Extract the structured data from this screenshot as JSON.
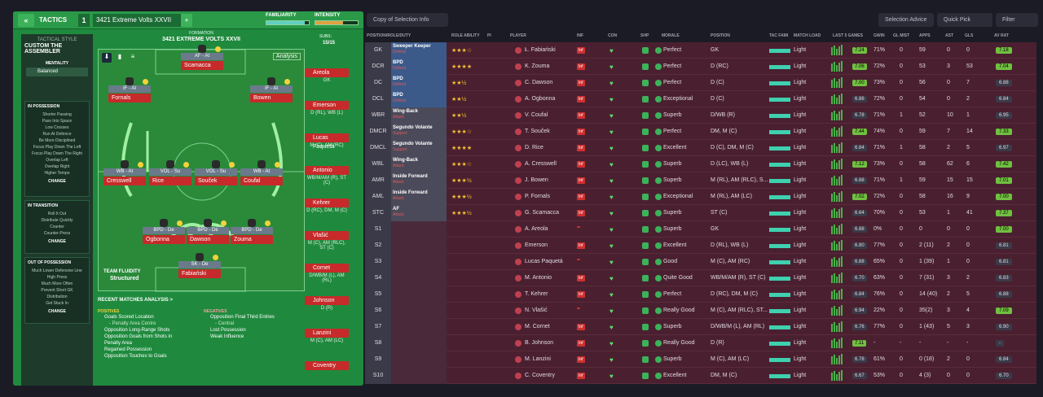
{
  "tactics": {
    "collapse": "«",
    "label": "TACTICS",
    "slot": "1",
    "name": "3421 Extreme Volts XXVII",
    "add": "+",
    "familiarity": "FAMILIARITY",
    "familiarity_level": 0.9,
    "intensity": "INTENSITY",
    "intensity_level": 0.65
  },
  "style": {
    "title": "TACTICAL STYLE",
    "name": "CUSTOM THE ASSEMBLER",
    "mentality_label": "MENTALITY",
    "mentality": "Balanced",
    "in_possession": {
      "title": "IN POSSESSION",
      "items": [
        "Shorter Passing",
        "Pass Into Space",
        "Low Crosses",
        "Run At Defence",
        "Be More Disciplined",
        "Focus Play Down The Left",
        "Focus Play Down The Right",
        "Overlap Left",
        "Overlap Right",
        "Higher Tempo"
      ],
      "change": "CHANGE"
    },
    "in_transition": {
      "title": "IN TRANSITION",
      "items": [
        "Roll It Out",
        "Distribute Quickly",
        "Counter",
        "Counter-Press"
      ],
      "change": "CHANGE"
    },
    "out_possession": {
      "title": "OUT OF POSSESSION",
      "items": [
        "Much Lower Defensive Line",
        "High Press",
        "Much More Often",
        "Prevent Short GK",
        "Distribution",
        "Get Stuck In"
      ],
      "change": "CHANGE"
    }
  },
  "formation": {
    "label": "FORMATION",
    "name": "3421 EXTREME VOLTS XXVII",
    "subs_label": "SUBS:",
    "subs": "15/15",
    "analysis": "Analysis",
    "fluidity_label": "TEAM FLUIDITY",
    "fluidity": "Structured",
    "players": [
      {
        "role": "AF - At",
        "name": "Scamacca"
      },
      {
        "role": "IF - At",
        "name": "Fornals"
      },
      {
        "role": "IF - At",
        "name": "Bowen"
      },
      {
        "role": "WB - At",
        "name": "Cresswell"
      },
      {
        "role": "VOL - Su",
        "name": "Rice"
      },
      {
        "role": "VOL - Su",
        "name": "Souček"
      },
      {
        "role": "WB - At",
        "name": "Coufal"
      },
      {
        "role": "BPD - De",
        "name": "Ogbonna"
      },
      {
        "role": "BPD - De",
        "name": "Dawson"
      },
      {
        "role": "BPD - De",
        "name": "Zouma"
      },
      {
        "role": "SK - De",
        "name": "Fabiański"
      }
    ]
  },
  "subs": [
    {
      "name": "Areola",
      "pos": "GK"
    },
    {
      "name": "Emerson",
      "pos": "D (RL), WB (L)"
    },
    {
      "name": "Lucas Paquetá",
      "pos": "M (C), AM (RC)"
    },
    {
      "name": "Antonio",
      "pos": "WB/M/AM (R), ST (C)"
    },
    {
      "name": "Kehrer",
      "pos": "D (RC), DM, M (C)"
    },
    {
      "name": "Vlašić",
      "pos": "M (C), AM (RLC), ST (C)"
    },
    {
      "name": "Cornet",
      "pos": "D/WB/M (L), AM (RL)"
    },
    {
      "name": "Johnson",
      "pos": "D (R)"
    },
    {
      "name": "Lanzini",
      "pos": "M (C), AM (LC)"
    },
    {
      "name": "Coventry",
      "pos": ""
    }
  ],
  "recent": {
    "title": "RECENT MATCHES ANALYSIS",
    "chev": ">",
    "pos_title": "POSITIVES",
    "neg_title": "NEGATIVES",
    "positives": [
      "Goals Scored Location",
      "- Penalty Area Centre",
      "Opposition Long-Range Shots",
      "Opposition Goals from Shots in",
      "Penalty Area",
      "Regained Possession",
      "Opposition Touches to Goals"
    ],
    "negatives": [
      "Opposition Final Third Entries",
      "- Central",
      "Lost Possession",
      "Weak Influence"
    ]
  },
  "toolbar": {
    "copy": "Copy of Selection Info",
    "advice": "Selection Advice",
    "quick_pick": "Quick Pick",
    "filter": "Filter"
  },
  "headers": [
    "POSITION/ROLE/DUTY",
    "ROLE ABILITY",
    "PI",
    "PLAYER",
    "INF",
    "CON",
    "SHP",
    "MORALE",
    "POSITION",
    "TAC FAMI",
    "MATCH LOAD",
    "LAST 5 GAMES",
    "GWIN",
    "GL MIST",
    "APPS",
    "AST",
    "GLS",
    "AV RAT"
  ],
  "rows": [
    {
      "pos": "GK",
      "role": "Sweeper Keeper",
      "duty": "Defend",
      "stars": "★★★☆",
      "player": "Ł. Fabiański",
      "inf": "Inf",
      "morale": "Perfect",
      "position": "GK",
      "load": "Light",
      "rat": "7.24",
      "gwin": "71%",
      "glm": "0",
      "apps": "59",
      "ast": "0",
      "gls": "0",
      "av": "7.18"
    },
    {
      "pos": "DCR",
      "role": "BPD",
      "duty": "Defend",
      "stars": "★★★★",
      "player": "K. Zouma",
      "inf": "Inf",
      "morale": "Perfect",
      "position": "D (RC)",
      "load": "Light",
      "rat": "7.06",
      "gwin": "72%",
      "glm": "0",
      "apps": "53",
      "ast": "3",
      "gls": "53",
      "av": "7.04"
    },
    {
      "pos": "DC",
      "role": "BPD",
      "duty": "Defend",
      "stars": "★★½",
      "player": "C. Dawson",
      "inf": "Inf",
      "morale": "Perfect",
      "position": "D (C)",
      "load": "Light",
      "rat": "7.00",
      "gwin": "73%",
      "glm": "0",
      "apps": "56",
      "ast": "0",
      "gls": "7",
      "av": "6.88"
    },
    {
      "pos": "DCL",
      "role": "BPD",
      "duty": "Defend",
      "stars": "★★½",
      "player": "A. Ogbonna",
      "inf": "Inf",
      "morale": "Exceptional",
      "position": "D (C)",
      "load": "Light",
      "rat": "6.86",
      "gwin": "72%",
      "glm": "0",
      "apps": "54",
      "ast": "0",
      "gls": "2",
      "av": "6.84"
    },
    {
      "pos": "WBR",
      "role": "Wing-Back",
      "duty": "Attack",
      "stars": "★★½",
      "player": "V. Coufal",
      "inf": "Inf",
      "morale": "Superb",
      "position": "D/WB (R)",
      "load": "Light",
      "rat": "6.78",
      "gwin": "71%",
      "glm": "1",
      "apps": "52",
      "ast": "10",
      "gls": "1",
      "av": "6.95"
    },
    {
      "pos": "DMCR",
      "role": "Segundo Volante",
      "duty": "Support",
      "stars": "★★★☆",
      "player": "T. Souček",
      "inf": "Inf",
      "morale": "Perfect",
      "position": "DM, M (C)",
      "load": "Light",
      "rat": "7.44",
      "gwin": "74%",
      "glm": "0",
      "apps": "59",
      "ast": "7",
      "gls": "14",
      "av": "7.33"
    },
    {
      "pos": "DMCL",
      "role": "Segundo Volante",
      "duty": "Support",
      "stars": "★★★★",
      "player": "D. Rice",
      "inf": "Inf",
      "morale": "Excellent",
      "position": "D (C), DM, M (C)",
      "load": "Light",
      "rat": "6.84",
      "gwin": "71%",
      "glm": "1",
      "apps": "58",
      "ast": "2",
      "gls": "5",
      "av": "6.97"
    },
    {
      "pos": "WBL",
      "role": "Wing-Back",
      "duty": "Attack",
      "stars": "★★★☆",
      "player": "A. Cresswell",
      "inf": "Inf",
      "morale": "Superb",
      "position": "D (LC), WB (L)",
      "load": "Light",
      "rat": "7.12",
      "gwin": "73%",
      "glm": "0",
      "apps": "58",
      "ast": "62",
      "gls": "6",
      "av": "7.42"
    },
    {
      "pos": "AMR",
      "role": "Inside Forward",
      "duty": "Attack",
      "stars": "★★★½",
      "player": "J. Bowen",
      "inf": "Inf",
      "morale": "Superb",
      "position": "M (RL), AM (RLC), S...",
      "load": "Light",
      "rat": "6.88",
      "gwin": "71%",
      "glm": "1",
      "apps": "59",
      "ast": "15",
      "gls": "15",
      "av": "7.01"
    },
    {
      "pos": "AML",
      "role": "Inside Forward",
      "duty": "Attack",
      "stars": "★★★½",
      "player": "P. Fornals",
      "inf": "Inf",
      "morale": "Exceptional",
      "position": "M (RL), AM (LC)",
      "load": "Light",
      "rat": "7.02",
      "gwin": "72%",
      "glm": "0",
      "apps": "58",
      "ast": "16",
      "gls": "9",
      "av": "7.00"
    },
    {
      "pos": "STC",
      "role": "AF",
      "duty": "Attack",
      "stars": "★★★½",
      "player": "G. Scamacca",
      "inf": "Inf",
      "morale": "Superb",
      "position": "ST (C)",
      "load": "Light",
      "rat": "6.64",
      "gwin": "70%",
      "glm": "0",
      "apps": "53",
      "ast": "1",
      "gls": "41",
      "av": "7.37"
    },
    {
      "pos": "S1",
      "role": "",
      "duty": "",
      "stars": "",
      "player": "A. Areola",
      "inf": "",
      "morale": "Superb",
      "position": "GK",
      "load": "Light",
      "rat": "6.88",
      "gwin": "0%",
      "glm": "0",
      "apps": "0",
      "ast": "0",
      "gls": "0",
      "av": "7.00"
    },
    {
      "pos": "S2",
      "role": "",
      "duty": "",
      "stars": "",
      "player": "Emerson",
      "inf": "Inf",
      "morale": "Excellent",
      "position": "D (RL), WB (L)",
      "load": "Light",
      "rat": "6.80",
      "gwin": "77%",
      "glm": "0",
      "apps": "2 (11)",
      "ast": "2",
      "gls": "0",
      "av": "6.81"
    },
    {
      "pos": "S3",
      "role": "",
      "duty": "",
      "stars": "",
      "player": "Lucas Paquetá",
      "inf": "",
      "morale": "Good",
      "position": "M (C), AM (RC)",
      "load": "Light",
      "rat": "6.88",
      "gwin": "65%",
      "glm": "0",
      "apps": "1 (39)",
      "ast": "1",
      "gls": "0",
      "av": "6.81"
    },
    {
      "pos": "S4",
      "role": "",
      "duty": "",
      "stars": "",
      "player": "M. Antonio",
      "inf": "Inf",
      "morale": "Quite Good",
      "position": "WB/M/AM (R), ST (C)",
      "load": "Light",
      "rat": "6.70",
      "gwin": "63%",
      "glm": "0",
      "apps": "7 (31)",
      "ast": "3",
      "gls": "2",
      "av": "6.83"
    },
    {
      "pos": "S5",
      "role": "",
      "duty": "",
      "stars": "",
      "player": "T. Kehrer",
      "inf": "Inf",
      "morale": "Perfect",
      "position": "D (RC), DM, M (C)",
      "load": "Light",
      "rat": "6.84",
      "gwin": "76%",
      "glm": "0",
      "apps": "14 (40)",
      "ast": "2",
      "gls": "5",
      "av": "6.88"
    },
    {
      "pos": "S6",
      "role": "",
      "duty": "",
      "stars": "",
      "player": "N. Vlašić",
      "inf": "",
      "morale": "Really Good",
      "position": "M (C), AM (RLC), ST...",
      "load": "Light",
      "rat": "6.94",
      "gwin": "22%",
      "glm": "0",
      "apps": "35(2)",
      "ast": "3",
      "gls": "4",
      "av": "7.09"
    },
    {
      "pos": "S7",
      "role": "",
      "duty": "",
      "stars": "",
      "player": "M. Cornet",
      "inf": "Inf",
      "morale": "Superb",
      "position": "D/WB/M (L), AM (RL)",
      "load": "Light",
      "rat": "6.76",
      "gwin": "77%",
      "glm": "0",
      "apps": "1 (43)",
      "ast": "5",
      "gls": "3",
      "av": "6.90"
    },
    {
      "pos": "S8",
      "role": "",
      "duty": "",
      "stars": "",
      "player": "B. Johnson",
      "inf": "Inf",
      "morale": "Really Good",
      "position": "D (R)",
      "load": "Light",
      "rat": "7.11",
      "gwin": "-",
      "glm": "-",
      "apps": "-",
      "ast": "-",
      "gls": "-",
      "av": "-"
    },
    {
      "pos": "S9",
      "role": "",
      "duty": "",
      "stars": "",
      "player": "M. Lanzini",
      "inf": "Inf",
      "morale": "Superb",
      "position": "M (C), AM (LC)",
      "load": "Light",
      "rat": "6.78",
      "gwin": "61%",
      "glm": "0",
      "apps": "0 (18)",
      "ast": "2",
      "gls": "0",
      "av": "6.84"
    },
    {
      "pos": "S10",
      "role": "",
      "duty": "",
      "stars": "",
      "player": "C. Coventry",
      "inf": "Inf",
      "morale": "Excellent",
      "position": "DM, M (C)",
      "load": "Light",
      "rat": "6.67",
      "gwin": "53%",
      "glm": "0",
      "apps": "4 (3)",
      "ast": "0",
      "gls": "0",
      "av": "6.70"
    }
  ]
}
